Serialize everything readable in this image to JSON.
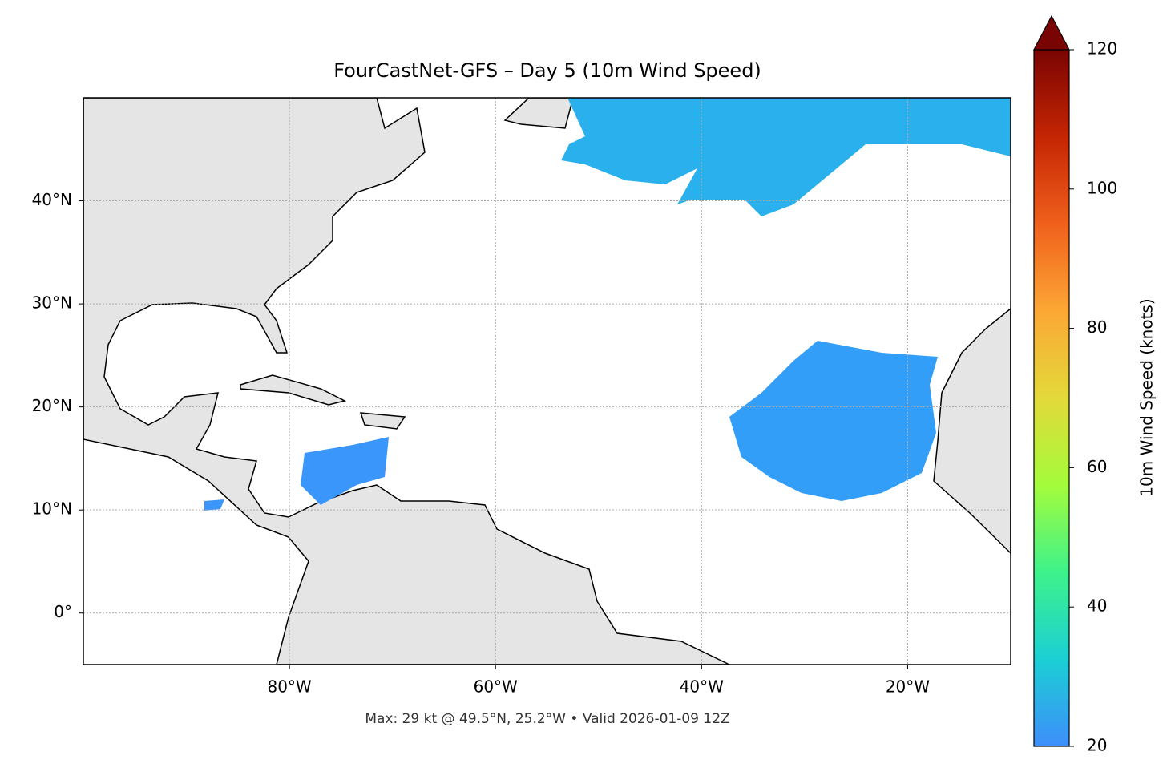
{
  "chart_data": {
    "type": "map",
    "title": "FourCastNet-GFS – Day 5 (10m Wind Speed)",
    "annotation": "Max: 29 kt @ 49.5°N, 25.2°W • Valid 2026-01-09 12Z",
    "xlim": [
      -100,
      -10
    ],
    "ylim": [
      -5,
      50
    ],
    "xticks": [
      {
        "value": -80,
        "label": "80°W"
      },
      {
        "value": -60,
        "label": "60°W"
      },
      {
        "value": -40,
        "label": "40°W"
      },
      {
        "value": -20,
        "label": "20°W"
      }
    ],
    "yticks": [
      {
        "value": 0,
        "label": "0°"
      },
      {
        "value": 10,
        "label": "10°N"
      },
      {
        "value": 20,
        "label": "20°N"
      },
      {
        "value": 30,
        "label": "30°N"
      },
      {
        "value": 40,
        "label": "40°N"
      }
    ],
    "grid": true,
    "colorbar": {
      "label": "10m Wind Speed (knots)",
      "lim": [
        20,
        120
      ],
      "ticks": [
        20,
        40,
        60,
        80,
        100,
        120
      ],
      "colors": [
        "#3e8efb",
        "#1bcfd4",
        "#3ef28b",
        "#a4fc3b",
        "#e3d93a",
        "#fca735",
        "#f0601c",
        "#c42503",
        "#7a0403"
      ]
    }
  }
}
